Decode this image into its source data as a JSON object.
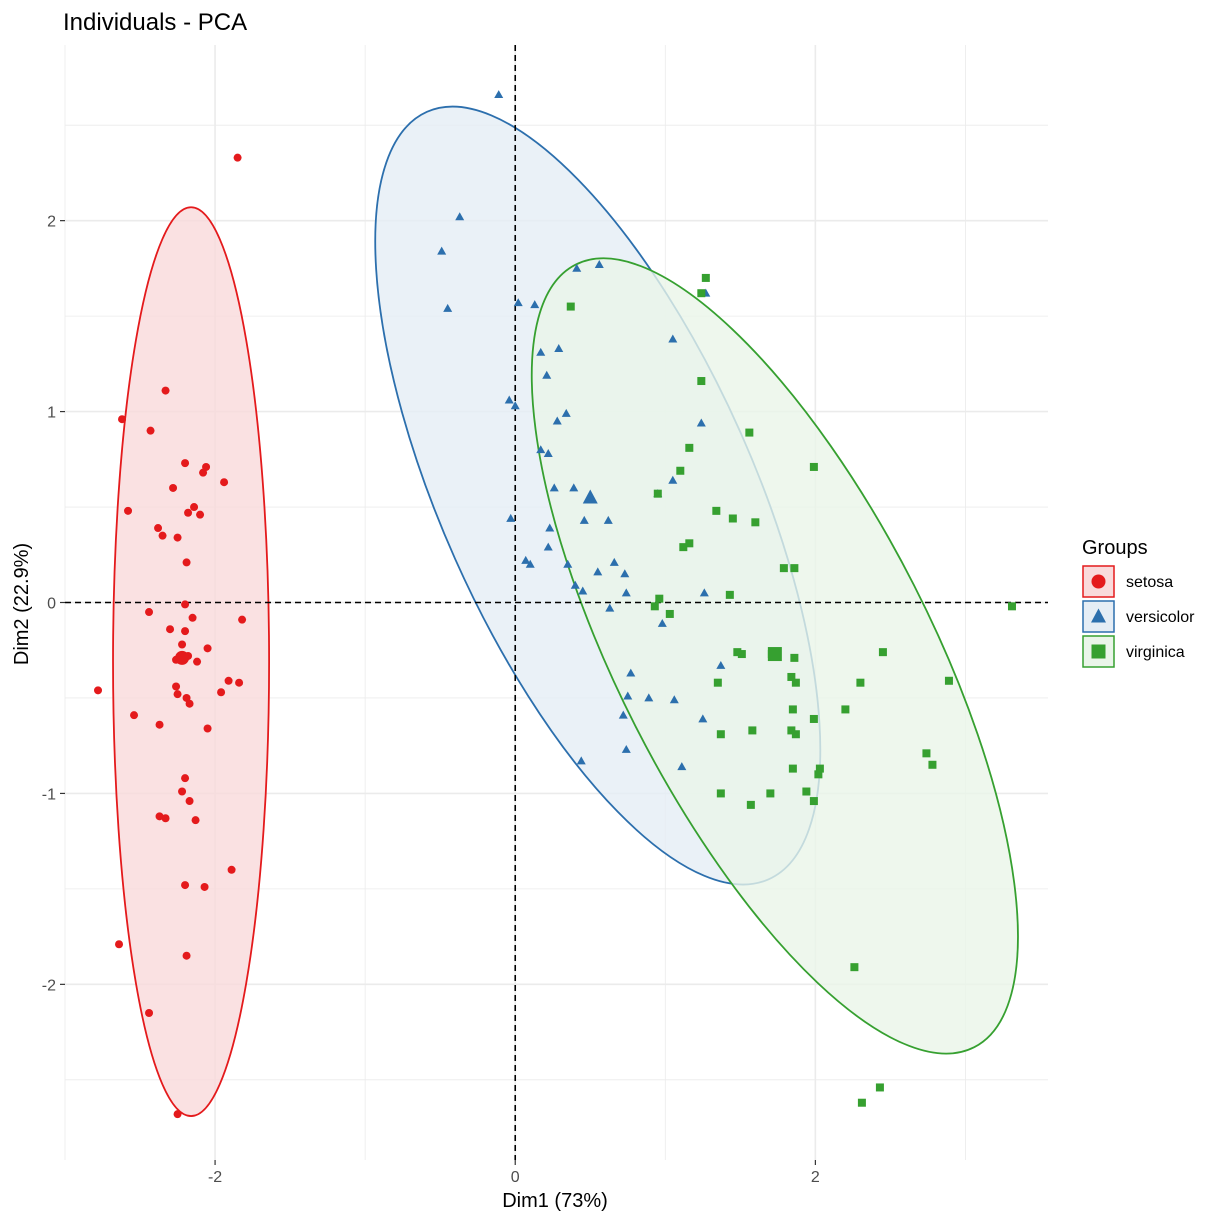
{
  "chart_data": {
    "type": "scatter",
    "title": "Individuals - PCA",
    "xlabel": "Dim1 (73%)",
    "ylabel": "Dim2 (22.9%)",
    "xlim": [
      -3.0,
      3.55
    ],
    "ylim": [
      -2.92,
      2.92
    ],
    "x_ticks": [
      -2,
      0,
      2
    ],
    "y_ticks": [
      -2,
      -1,
      0,
      1,
      2
    ],
    "x_tick_labels": [
      "-2",
      "0",
      "2"
    ],
    "y_tick_labels": [
      "-2",
      "-1",
      "0",
      "1",
      "2"
    ],
    "grid": true,
    "reference_lines": {
      "x": 0,
      "y": 0,
      "style": "dashed"
    },
    "legend": {
      "title": "Groups",
      "position": "right"
    },
    "series": [
      {
        "name": "setosa",
        "shape": "circle",
        "color": "#E41A1C",
        "fill": "#F9DADB",
        "mean": [
          -2.22,
          -0.29
        ],
        "ellipse": {
          "center": [
            -2.16,
            -0.31
          ],
          "semi_x": 0.52,
          "semi_y": 2.38,
          "rotation_deg": 0
        },
        "points": [
          [
            -1.85,
            2.33
          ],
          [
            -2.33,
            1.11
          ],
          [
            -2.62,
            0.96
          ],
          [
            -2.43,
            0.9
          ],
          [
            -2.2,
            0.73
          ],
          [
            -2.06,
            0.71
          ],
          [
            -2.08,
            0.68
          ],
          [
            -1.94,
            0.63
          ],
          [
            -2.28,
            0.6
          ],
          [
            -2.58,
            0.48
          ],
          [
            -2.14,
            0.5
          ],
          [
            -2.18,
            0.47
          ],
          [
            -2.1,
            0.46
          ],
          [
            -2.38,
            0.39
          ],
          [
            -2.35,
            0.35
          ],
          [
            -2.25,
            0.34
          ],
          [
            -2.19,
            0.21
          ],
          [
            -2.2,
            -0.01
          ],
          [
            -2.44,
            -0.05
          ],
          [
            -2.15,
            -0.08
          ],
          [
            -1.82,
            -0.09
          ],
          [
            -2.3,
            -0.14
          ],
          [
            -2.2,
            -0.15
          ],
          [
            -2.22,
            -0.22
          ],
          [
            -2.05,
            -0.24
          ],
          [
            -2.18,
            -0.28
          ],
          [
            -2.26,
            -0.3
          ],
          [
            -2.12,
            -0.31
          ],
          [
            -1.91,
            -0.41
          ],
          [
            -1.84,
            -0.42
          ],
          [
            -2.26,
            -0.44
          ],
          [
            -2.25,
            -0.48
          ],
          [
            -1.96,
            -0.47
          ],
          [
            -2.19,
            -0.5
          ],
          [
            -2.17,
            -0.53
          ],
          [
            -2.78,
            -0.46
          ],
          [
            -2.54,
            -0.59
          ],
          [
            -2.37,
            -0.64
          ],
          [
            -2.05,
            -0.66
          ],
          [
            -2.2,
            -0.92
          ],
          [
            -2.22,
            -0.99
          ],
          [
            -2.17,
            -1.04
          ],
          [
            -2.37,
            -1.12
          ],
          [
            -2.33,
            -1.13
          ],
          [
            -2.13,
            -1.14
          ],
          [
            -1.89,
            -1.4
          ],
          [
            -2.2,
            -1.48
          ],
          [
            -2.07,
            -1.49
          ],
          [
            -2.64,
            -1.79
          ],
          [
            -2.19,
            -1.85
          ],
          [
            -2.44,
            -2.15
          ],
          [
            -2.25,
            -2.68
          ]
        ]
      },
      {
        "name": "versicolor",
        "shape": "triangle",
        "color": "#2C6FAD",
        "fill": "#E5EDF5",
        "mean": [
          0.5,
          0.55
        ],
        "ellipse": {
          "center": [
            0.55,
            0.56
          ],
          "semi_x": 1.04,
          "semi_y": 2.2,
          "rotation_deg": -24
        },
        "points": [
          [
            -0.11,
            2.66
          ],
          [
            -0.37,
            2.02
          ],
          [
            -0.49,
            1.84
          ],
          [
            -0.45,
            1.54
          ],
          [
            0.41,
            1.75
          ],
          [
            0.56,
            1.77
          ],
          [
            0.02,
            1.57
          ],
          [
            0.13,
            1.56
          ],
          [
            0.17,
            1.31
          ],
          [
            0.29,
            1.33
          ],
          [
            0.21,
            1.19
          ],
          [
            -0.04,
            1.06
          ],
          [
            0.0,
            1.03
          ],
          [
            0.34,
            0.99
          ],
          [
            0.28,
            0.95
          ],
          [
            0.17,
            0.8
          ],
          [
            0.22,
            0.78
          ],
          [
            0.95,
            0.57
          ],
          [
            1.05,
            0.64
          ],
          [
            0.26,
            0.6
          ],
          [
            0.39,
            0.6
          ],
          [
            0.5,
            0.55
          ],
          [
            0.46,
            0.43
          ],
          [
            0.62,
            0.43
          ],
          [
            -0.03,
            0.44
          ],
          [
            0.23,
            0.39
          ],
          [
            0.22,
            0.29
          ],
          [
            0.07,
            0.22
          ],
          [
            0.1,
            0.2
          ],
          [
            0.35,
            0.2
          ],
          [
            0.66,
            0.21
          ],
          [
            0.55,
            0.16
          ],
          [
            0.73,
            0.15
          ],
          [
            0.4,
            0.09
          ],
          [
            0.74,
            0.05
          ],
          [
            0.45,
            0.06
          ],
          [
            1.26,
            0.05
          ],
          [
            0.63,
            -0.03
          ],
          [
            0.98,
            -0.11
          ],
          [
            0.77,
            -0.37
          ],
          [
            1.37,
            -0.33
          ],
          [
            0.75,
            -0.49
          ],
          [
            0.89,
            -0.5
          ],
          [
            1.06,
            -0.51
          ],
          [
            0.72,
            -0.59
          ],
          [
            1.25,
            -0.61
          ],
          [
            0.44,
            -0.83
          ],
          [
            1.11,
            -0.86
          ],
          [
            0.74,
            -0.77
          ],
          [
            1.27,
            1.62
          ],
          [
            1.05,
            1.38
          ],
          [
            1.24,
            0.94
          ]
        ]
      },
      {
        "name": "virginica",
        "shape": "square",
        "color": "#36A030",
        "fill": "#EAF5E9",
        "mean": [
          1.73,
          -0.27
        ],
        "ellipse": {
          "center": [
            1.73,
            -0.28
          ],
          "semi_x": 1.04,
          "semi_y": 2.3,
          "rotation_deg": -27
        },
        "points": [
          [
            1.27,
            1.7
          ],
          [
            1.24,
            1.62
          ],
          [
            0.37,
            1.55
          ],
          [
            1.24,
            1.16
          ],
          [
            1.56,
            0.89
          ],
          [
            1.16,
            0.81
          ],
          [
            1.99,
            0.71
          ],
          [
            1.1,
            0.69
          ],
          [
            0.95,
            0.57
          ],
          [
            1.34,
            0.48
          ],
          [
            1.45,
            0.44
          ],
          [
            1.6,
            0.42
          ],
          [
            1.16,
            0.31
          ],
          [
            1.12,
            0.29
          ],
          [
            1.79,
            0.18
          ],
          [
            1.86,
            0.18
          ],
          [
            1.43,
            0.04
          ],
          [
            0.96,
            0.02
          ],
          [
            0.93,
            -0.02
          ],
          [
            1.03,
            -0.06
          ],
          [
            3.31,
            -0.02
          ],
          [
            1.71,
            -0.27
          ],
          [
            1.48,
            -0.26
          ],
          [
            1.51,
            -0.27
          ],
          [
            1.86,
            -0.29
          ],
          [
            2.45,
            -0.26
          ],
          [
            1.84,
            -0.39
          ],
          [
            1.87,
            -0.42
          ],
          [
            2.3,
            -0.42
          ],
          [
            2.89,
            -0.41
          ],
          [
            1.35,
            -0.42
          ],
          [
            1.85,
            -0.56
          ],
          [
            2.2,
            -0.56
          ],
          [
            1.99,
            -0.61
          ],
          [
            1.84,
            -0.67
          ],
          [
            1.87,
            -0.69
          ],
          [
            1.58,
            -0.67
          ],
          [
            1.37,
            -0.69
          ],
          [
            2.74,
            -0.79
          ],
          [
            2.78,
            -0.85
          ],
          [
            2.03,
            -0.87
          ],
          [
            2.02,
            -0.9
          ],
          [
            1.85,
            -0.87
          ],
          [
            1.37,
            -1.0
          ],
          [
            1.7,
            -1.0
          ],
          [
            1.94,
            -0.99
          ],
          [
            1.99,
            -1.04
          ],
          [
            1.57,
            -1.06
          ],
          [
            2.26,
            -1.91
          ],
          [
            2.43,
            -2.54
          ],
          [
            2.31,
            -2.62
          ]
        ]
      }
    ]
  }
}
